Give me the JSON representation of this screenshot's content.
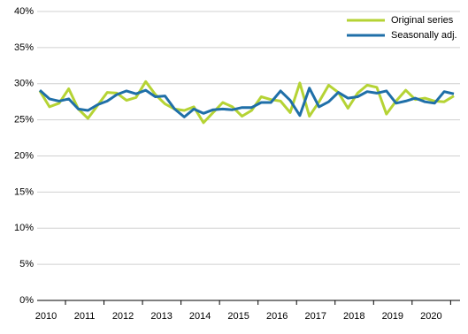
{
  "chart_data": {
    "type": "line",
    "categories": [
      "2010",
      null,
      null,
      null,
      "2011",
      null,
      null,
      null,
      "2012",
      null,
      null,
      null,
      "2013",
      null,
      null,
      null,
      "2014",
      null,
      null,
      null,
      "2015",
      null,
      null,
      null,
      "2016",
      null,
      null,
      null,
      "2017",
      null,
      null,
      null,
      "2018",
      null,
      null,
      null,
      "2019",
      null,
      null,
      null,
      "2020",
      null,
      null,
      null
    ],
    "series": [
      {
        "name": "Original series",
        "color": "#b5d334",
        "values": [
          29.0,
          26.8,
          27.3,
          29.3,
          26.5,
          25.2,
          27.0,
          28.8,
          28.7,
          27.7,
          28.1,
          30.3,
          28.5,
          27.2,
          26.5,
          26.3,
          26.8,
          24.6,
          26.0,
          27.4,
          26.8,
          25.5,
          26.3,
          28.2,
          27.8,
          27.6,
          26.0,
          30.1,
          25.5,
          27.5,
          29.8,
          28.8,
          26.6,
          28.7,
          29.8,
          29.5,
          25.8,
          27.6,
          29.1,
          27.8,
          28.0,
          27.6,
          27.5,
          28.3
        ]
      },
      {
        "name": "Seasonally adj.",
        "color": "#1f6fa8",
        "values": [
          29.1,
          27.9,
          27.6,
          27.9,
          26.5,
          26.3,
          27.1,
          27.6,
          28.5,
          29.0,
          28.6,
          29.1,
          28.2,
          28.3,
          26.5,
          25.4,
          26.5,
          25.9,
          26.4,
          26.5,
          26.4,
          26.7,
          26.7,
          27.4,
          27.4,
          29.0,
          27.7,
          25.6,
          29.4,
          26.8,
          27.5,
          28.8,
          28.0,
          28.2,
          28.9,
          28.7,
          29.0,
          27.3,
          27.6,
          28.0,
          27.5,
          27.3,
          28.9,
          28.6
        ]
      }
    ],
    "ylim": [
      0,
      40
    ],
    "yticks": [
      {
        "value": 0,
        "label": "0%"
      },
      {
        "value": 5,
        "label": "5%"
      },
      {
        "value": 10,
        "label": "10%"
      },
      {
        "value": 15,
        "label": "15%"
      },
      {
        "value": 20,
        "label": "20%"
      },
      {
        "value": 25,
        "label": "25%"
      },
      {
        "value": 30,
        "label": "30%"
      },
      {
        "value": 35,
        "label": "35%"
      },
      {
        "value": 40,
        "label": "40%"
      }
    ],
    "grid": true,
    "legend": "top-right"
  }
}
